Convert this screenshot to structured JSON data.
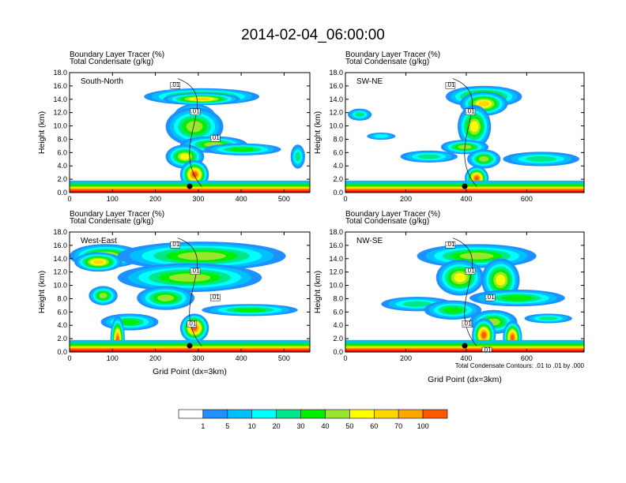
{
  "title": "2014-02-04_06:00:00",
  "chart_data": {
    "type": "heatmap",
    "panels": [
      {
        "name": "South-North",
        "label_lines": [
          "Boundary Layer Tracer   (%)",
          "Total Condensate   (g/kg)"
        ],
        "xlim": [
          0,
          560
        ],
        "xticks": [
          0,
          100,
          200,
          300,
          400,
          500
        ],
        "ylim": [
          0,
          18
        ],
        "yticks": [
          "0.0",
          "2.0",
          "4.0",
          "6.0",
          "8.0",
          "10.0",
          "12.0",
          "14.0",
          "16.0",
          "18.0"
        ],
        "ylabel": "Height (km)",
        "xlabel": "",
        "contour_labels": [
          ".01",
          ".01",
          ".01"
        ],
        "marker_x": 280
      },
      {
        "name": "SW-NE",
        "label_lines": [
          "Boundary Layer Tracer   (%)",
          "Total Condensate   (g/kg)"
        ],
        "xlim": [
          0,
          790
        ],
        "xticks": [
          0,
          200,
          400,
          600
        ],
        "ylim": [
          0,
          18
        ],
        "yticks": [
          "0.0",
          "2.0",
          "4.0",
          "6.0",
          "8.0",
          "10.0",
          "12.0",
          "14.0",
          "16.0",
          "18.0"
        ],
        "ylabel": "Height (km)",
        "xlabel": "",
        "contour_labels": [
          ".01",
          ".01"
        ],
        "marker_x": 395
      },
      {
        "name": "West-East",
        "label_lines": [
          "Boundary Layer Tracer   (%)",
          "Total Condensate   (g/kg)"
        ],
        "xlim": [
          0,
          560
        ],
        "xticks": [
          0,
          100,
          200,
          300,
          400,
          500
        ],
        "ylim": [
          0,
          18
        ],
        "yticks": [
          "0.0",
          "2.0",
          "4.0",
          "6.0",
          "8.0",
          "10.0",
          "12.0",
          "14.0",
          "16.0",
          "18.0"
        ],
        "ylabel": "Height (km)",
        "xlabel": "Grid Point (dx=3km)",
        "contour_labels": [
          ".01",
          ".01",
          ".01",
          ".01"
        ],
        "marker_x": 280
      },
      {
        "name": "NW-SE",
        "label_lines": [
          "Boundary Layer Tracer   (%)",
          "Total Condensate   (g/kg)"
        ],
        "xlim": [
          0,
          790
        ],
        "xticks": [
          0,
          200,
          400,
          600
        ],
        "ylim": [
          0,
          18
        ],
        "yticks": [
          "0.0",
          "2.0",
          "4.0",
          "6.0",
          "8.0",
          "10.0",
          "12.0",
          "14.0",
          "16.0",
          "18.0"
        ],
        "ylabel": "Height (km)",
        "xlabel": "Grid Point (dx=3km)",
        "contour_labels": [
          ".01",
          ".01",
          ".01",
          ".01",
          ".01"
        ],
        "marker_x": 395,
        "contour_info": "Total Condensate Contours: .01 to .01 by .000"
      }
    ],
    "colorbar": {
      "levels": [
        "1",
        "5",
        "10",
        "20",
        "30",
        "40",
        "50",
        "60",
        "70",
        "100"
      ],
      "colors": [
        "#ffffff",
        "#1e90ff",
        "#00bfff",
        "#00ffff",
        "#00e68a",
        "#00ee00",
        "#9ae62e",
        "#ffff00",
        "#ffd700",
        "#ffa500",
        "#ff5a00",
        "#ff0000"
      ]
    }
  }
}
